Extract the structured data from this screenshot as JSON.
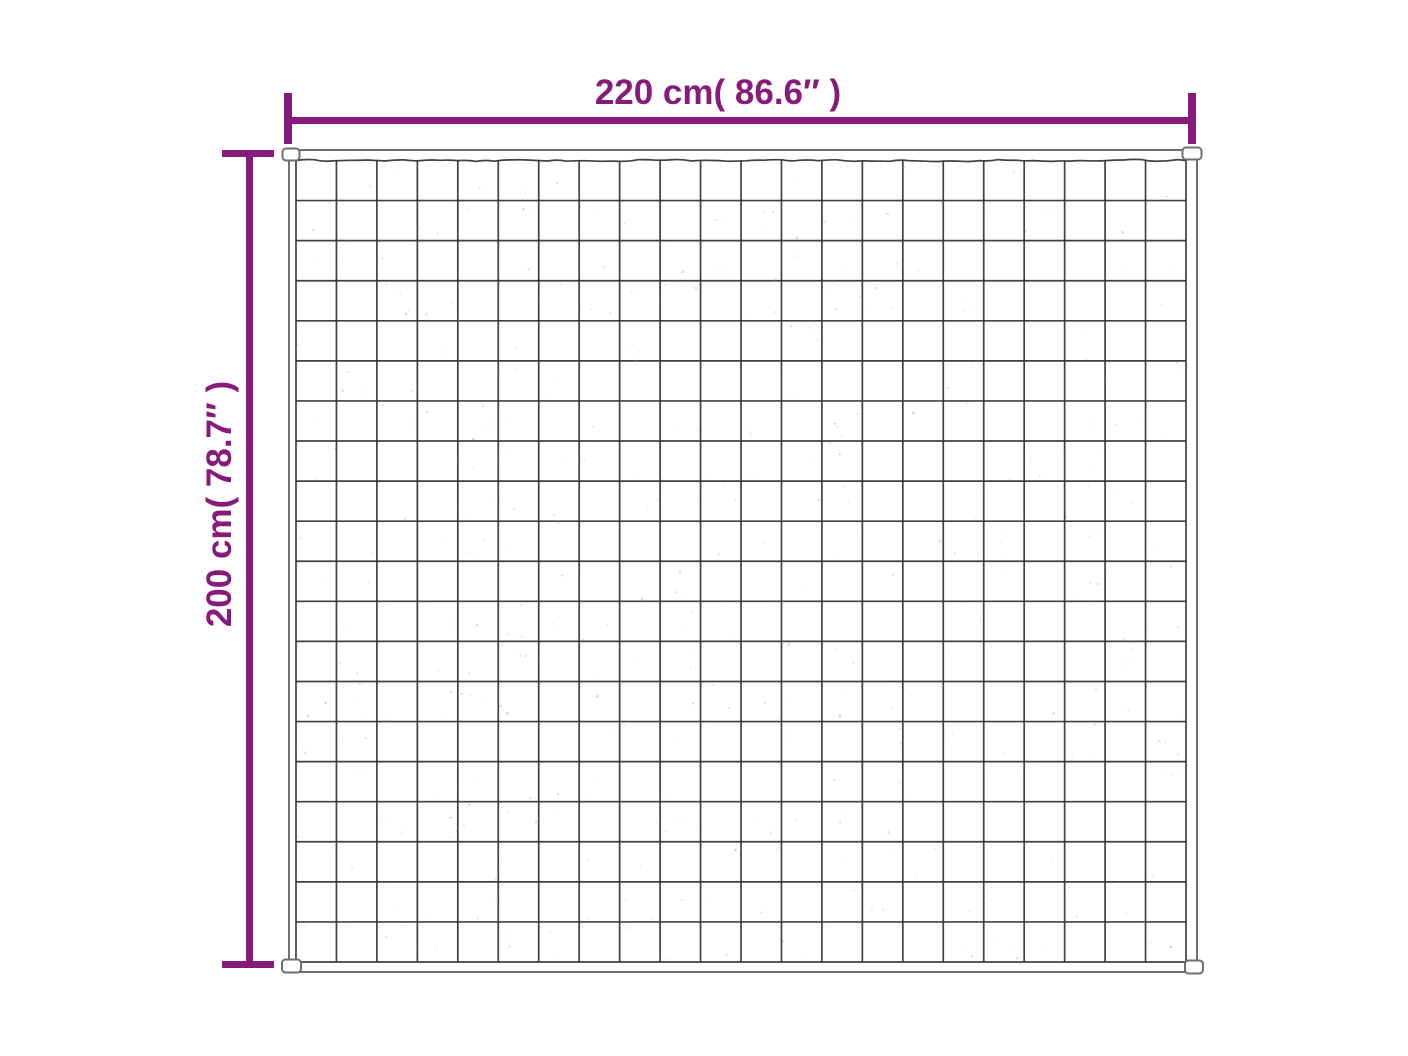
{
  "diagram": {
    "kind": "product-dimension-diagram",
    "subject": "grid-quilted weighted blanket",
    "width_label": "220 cm( 86.6″ )",
    "height_label": "200 cm( 78.7″ )",
    "grid_columns": 22,
    "grid_rows": 20
  },
  "colors": {
    "accent": "#871B7B",
    "outline": "#6F6F6F",
    "grid_line": "#333333",
    "speckle": "#8A8A8A",
    "background": "#FFFFFF"
  }
}
